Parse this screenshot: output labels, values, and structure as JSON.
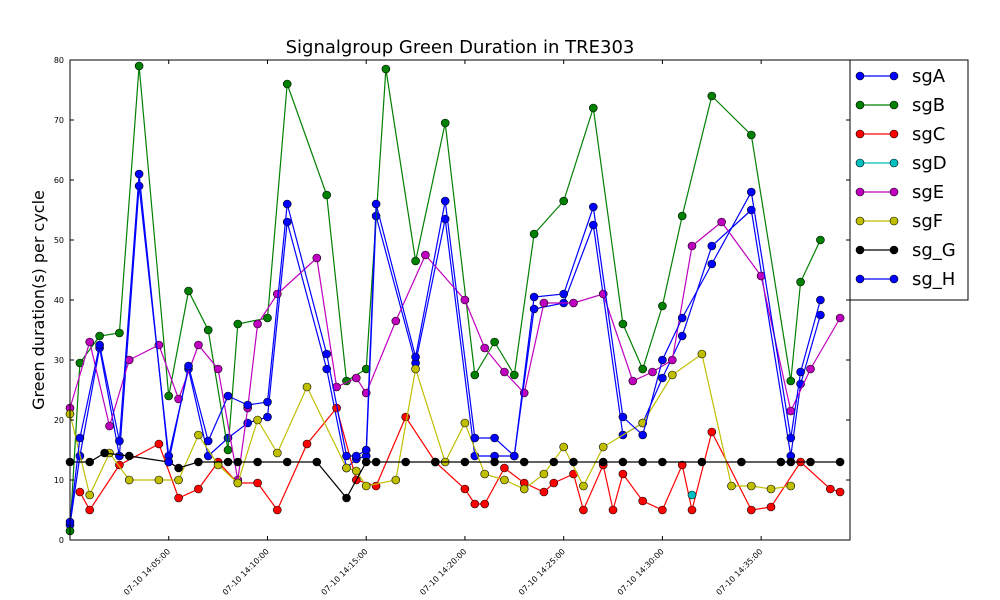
{
  "chart_data": {
    "type": "line",
    "title": "Signalgroup Green Duration in TRE303",
    "xlabel": "",
    "ylabel": "Green duration(s) per cycle",
    "xlim_min": [
      0,
      79
    ],
    "ylim": [
      0,
      80
    ],
    "yticks": [
      0,
      10,
      20,
      30,
      40,
      50,
      60,
      70,
      80
    ],
    "xticks": [
      {
        "label": "07-10 14:05:00",
        "t": 10
      },
      {
        "label": "07-10 14:10:00",
        "t": 20
      },
      {
        "label": "07-10 14:15:00",
        "t": 30
      },
      {
        "label": "07-10 14:20:00",
        "t": 40
      },
      {
        "label": "07-10 14:25:00",
        "t": 50
      },
      {
        "label": "07-10 14:30:00",
        "t": 60
      },
      {
        "label": "07-10 14:35:00",
        "t": 70
      }
    ],
    "legend_position": "outside-top-right",
    "series": [
      {
        "name": "sgA",
        "color": "#0000ff",
        "points": [
          [
            0,
            2.5
          ],
          [
            1,
            14
          ],
          [
            3,
            32
          ],
          [
            5,
            14
          ],
          [
            7,
            59
          ],
          [
            10,
            14
          ],
          [
            12,
            28.5
          ],
          [
            14,
            14
          ],
          [
            16,
            17
          ],
          [
            18,
            19.5
          ],
          [
            20,
            20.5
          ],
          [
            22,
            53
          ],
          [
            26,
            28.5
          ],
          [
            28,
            12
          ],
          [
            29,
            13.5
          ],
          [
            30,
            14
          ],
          [
            31,
            54
          ],
          [
            35,
            29.5
          ],
          [
            38,
            53.5
          ],
          [
            41,
            14
          ],
          [
            43,
            14
          ],
          [
            45,
            14
          ],
          [
            47,
            38.5
          ],
          [
            50,
            39.5
          ],
          [
            53,
            52.5
          ],
          [
            56,
            17.5
          ],
          [
            58,
            19.5
          ],
          [
            60,
            27
          ],
          [
            62,
            34
          ],
          [
            65,
            49
          ],
          [
            69,
            55
          ],
          [
            73,
            14
          ],
          [
            74,
            26
          ],
          [
            76,
            37.5
          ]
        ]
      },
      {
        "name": "sgB",
        "color": "#008000",
        "points": [
          [
            0,
            1.5
          ],
          [
            1,
            29.5
          ],
          [
            3,
            34
          ],
          [
            5,
            34.5
          ],
          [
            7,
            79
          ],
          [
            10,
            24
          ],
          [
            12,
            41.5
          ],
          [
            14,
            35
          ],
          [
            16,
            15
          ],
          [
            17,
            36
          ],
          [
            20,
            37
          ],
          [
            22,
            76
          ],
          [
            26,
            57.5
          ],
          [
            28,
            26.5
          ],
          [
            30,
            28.5
          ],
          [
            32,
            78.5
          ],
          [
            35,
            46.5
          ],
          [
            38,
            69.5
          ],
          [
            41,
            27.5
          ],
          [
            43,
            33
          ],
          [
            45,
            27.5
          ],
          [
            47,
            51
          ],
          [
            50,
            56.5
          ],
          [
            53,
            72
          ],
          [
            56,
            36
          ],
          [
            58,
            28.5
          ],
          [
            60,
            39
          ],
          [
            62,
            54
          ],
          [
            65,
            74
          ],
          [
            69,
            67.5
          ],
          [
            73,
            26.5
          ],
          [
            74,
            43
          ],
          [
            76,
            50
          ]
        ]
      },
      {
        "name": "sgC",
        "color": "#ff0000",
        "points": [
          [
            1,
            8
          ],
          [
            2,
            5
          ],
          [
            5,
            12.5
          ],
          [
            9,
            16
          ],
          [
            11,
            7
          ],
          [
            13,
            8.5
          ],
          [
            15,
            13
          ],
          [
            17,
            9.5
          ],
          [
            19,
            9.5
          ],
          [
            21,
            5
          ],
          [
            24,
            16
          ],
          [
            27,
            22
          ],
          [
            29,
            10
          ],
          [
            31,
            9
          ],
          [
            34,
            20.5
          ],
          [
            37,
            13
          ],
          [
            40,
            8.5
          ],
          [
            41,
            6
          ],
          [
            42,
            6
          ],
          [
            44,
            12
          ],
          [
            46,
            9.5
          ],
          [
            48,
            8
          ],
          [
            49,
            9.5
          ],
          [
            51,
            11
          ],
          [
            52,
            5
          ],
          [
            54,
            12.5
          ],
          [
            55,
            5
          ],
          [
            56,
            11
          ],
          [
            58,
            6.5
          ],
          [
            60,
            5
          ],
          [
            62,
            12.5
          ],
          [
            63,
            5
          ],
          [
            65,
            18
          ],
          [
            69,
            5
          ],
          [
            71,
            5.5
          ],
          [
            74,
            13
          ],
          [
            77,
            8.5
          ],
          [
            78,
            8
          ]
        ]
      },
      {
        "name": "sgD",
        "color": "#00bfbf",
        "points": [
          [
            63,
            7.5
          ]
        ]
      },
      {
        "name": "sgE",
        "color": "#bf00bf",
        "points": [
          [
            0,
            22
          ],
          [
            2,
            33
          ],
          [
            4,
            19
          ],
          [
            6,
            30
          ],
          [
            9,
            32.5
          ],
          [
            11,
            23.5
          ],
          [
            13,
            32.5
          ],
          [
            15,
            28.5
          ],
          [
            17,
            10
          ],
          [
            18,
            22
          ],
          [
            19,
            36
          ],
          [
            21,
            41
          ],
          [
            25,
            47
          ],
          [
            27,
            25.5
          ],
          [
            29,
            27
          ],
          [
            30,
            24.5
          ],
          [
            33,
            36.5
          ],
          [
            36,
            47.5
          ],
          [
            40,
            40
          ],
          [
            42,
            32
          ],
          [
            44,
            28
          ],
          [
            46,
            24.5
          ],
          [
            48,
            39.5
          ],
          [
            51,
            39.5
          ],
          [
            54,
            41
          ],
          [
            57,
            26.5
          ],
          [
            59,
            28
          ],
          [
            61,
            30
          ],
          [
            63,
            49
          ],
          [
            66,
            53
          ],
          [
            70,
            44
          ],
          [
            73,
            21.5
          ],
          [
            75,
            28.5
          ],
          [
            78,
            37
          ]
        ]
      },
      {
        "name": "sgF",
        "color": "#bfbf00",
        "points": [
          [
            0,
            21
          ],
          [
            2,
            7.5
          ],
          [
            4,
            14.5
          ],
          [
            6,
            10
          ],
          [
            9,
            10
          ],
          [
            11,
            10
          ],
          [
            13,
            17.5
          ],
          [
            15,
            12.5
          ],
          [
            17,
            9.5
          ],
          [
            19,
            20
          ],
          [
            21,
            14.5
          ],
          [
            24,
            25.5
          ],
          [
            28,
            12
          ],
          [
            29,
            11.5
          ],
          [
            30,
            9
          ],
          [
            33,
            10
          ],
          [
            35,
            28.5
          ],
          [
            38,
            13
          ],
          [
            40,
            19.5
          ],
          [
            42,
            11
          ],
          [
            44,
            10
          ],
          [
            46,
            8.5
          ],
          [
            48,
            11
          ],
          [
            50,
            15.5
          ],
          [
            52,
            9
          ],
          [
            54,
            15.5
          ],
          [
            58,
            19.5
          ],
          [
            61,
            27.5
          ],
          [
            64,
            31
          ],
          [
            67,
            9
          ],
          [
            69,
            9
          ],
          [
            71,
            8.5
          ],
          [
            73,
            9
          ]
        ]
      },
      {
        "name": "sg_G",
        "color": "#000000",
        "points": [
          [
            0,
            13
          ],
          [
            2,
            13
          ],
          [
            3.5,
            14.5
          ],
          [
            6,
            14
          ],
          [
            10,
            13
          ],
          [
            11,
            12
          ],
          [
            13,
            13
          ],
          [
            16,
            13
          ],
          [
            17,
            13
          ],
          [
            19,
            13
          ],
          [
            22,
            13
          ],
          [
            25,
            13
          ],
          [
            28,
            7
          ],
          [
            30,
            13
          ],
          [
            31,
            13
          ],
          [
            34,
            13
          ],
          [
            37,
            13
          ],
          [
            40,
            13
          ],
          [
            43,
            13
          ],
          [
            46,
            13
          ],
          [
            49,
            13
          ],
          [
            51,
            13
          ],
          [
            54,
            13
          ],
          [
            56,
            13
          ],
          [
            58,
            13
          ],
          [
            60,
            13
          ],
          [
            64,
            13
          ],
          [
            68,
            13
          ],
          [
            72,
            13
          ],
          [
            73,
            13
          ],
          [
            75,
            13
          ],
          [
            78,
            13
          ]
        ]
      },
      {
        "name": "sg_H",
        "color": "#0000ff",
        "points": [
          [
            0,
            3
          ],
          [
            1,
            17
          ],
          [
            3,
            32.5
          ],
          [
            5,
            16.5
          ],
          [
            7,
            61
          ],
          [
            10,
            13
          ],
          [
            12,
            29
          ],
          [
            14,
            16.5
          ],
          [
            16,
            24
          ],
          [
            18,
            22.5
          ],
          [
            20,
            23
          ],
          [
            22,
            56
          ],
          [
            26,
            31
          ],
          [
            28,
            14
          ],
          [
            29,
            14
          ],
          [
            30,
            15
          ],
          [
            31,
            56
          ],
          [
            35,
            30.5
          ],
          [
            38,
            56.5
          ],
          [
            41,
            17
          ],
          [
            43,
            17
          ],
          [
            45,
            14
          ],
          [
            47,
            40.5
          ],
          [
            50,
            41
          ],
          [
            53,
            55.5
          ],
          [
            56,
            20.5
          ],
          [
            58,
            17.5
          ],
          [
            60,
            30
          ],
          [
            62,
            37
          ],
          [
            65,
            46
          ],
          [
            69,
            58
          ],
          [
            73,
            17
          ],
          [
            74,
            28
          ],
          [
            76,
            40
          ]
        ]
      }
    ]
  }
}
